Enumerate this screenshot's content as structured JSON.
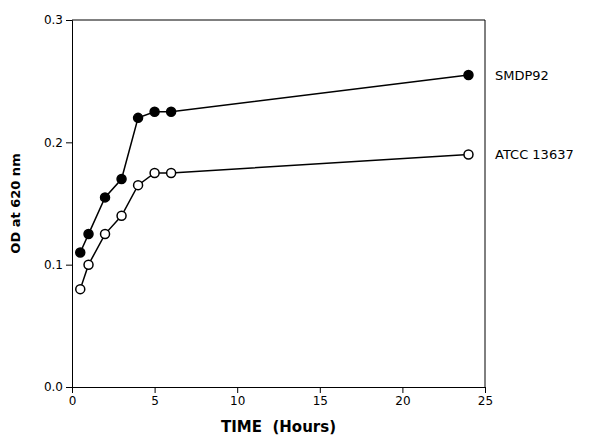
{
  "chart_data": {
    "type": "line",
    "x": [
      0.5,
      1,
      2,
      3,
      4,
      5,
      6,
      24
    ],
    "series": [
      {
        "name": "SMDP92",
        "color": "#000000",
        "marker": "circle",
        "values": [
          0.11,
          0.125,
          0.155,
          0.17,
          0.22,
          0.225,
          0.225,
          0.255
        ]
      },
      {
        "name": "ATCC 13637",
        "color": "#000000",
        "marker": "open-circle",
        "values": [
          0.08,
          0.1,
          0.125,
          0.14,
          0.165,
          0.175,
          0.175,
          0.19
        ]
      }
    ],
    "x_label": "TIME  (Hours)",
    "y_label": "OD at 620 nm",
    "xlim": [
      0,
      25
    ],
    "ylim": [
      0.0,
      0.3
    ],
    "xticks": [
      0,
      5,
      10,
      15,
      20,
      25
    ],
    "yticks": [
      {
        "value": 0.0,
        "label": "0.0"
      },
      0.1,
      0.2,
      0.3
    ],
    "grid": false
  }
}
